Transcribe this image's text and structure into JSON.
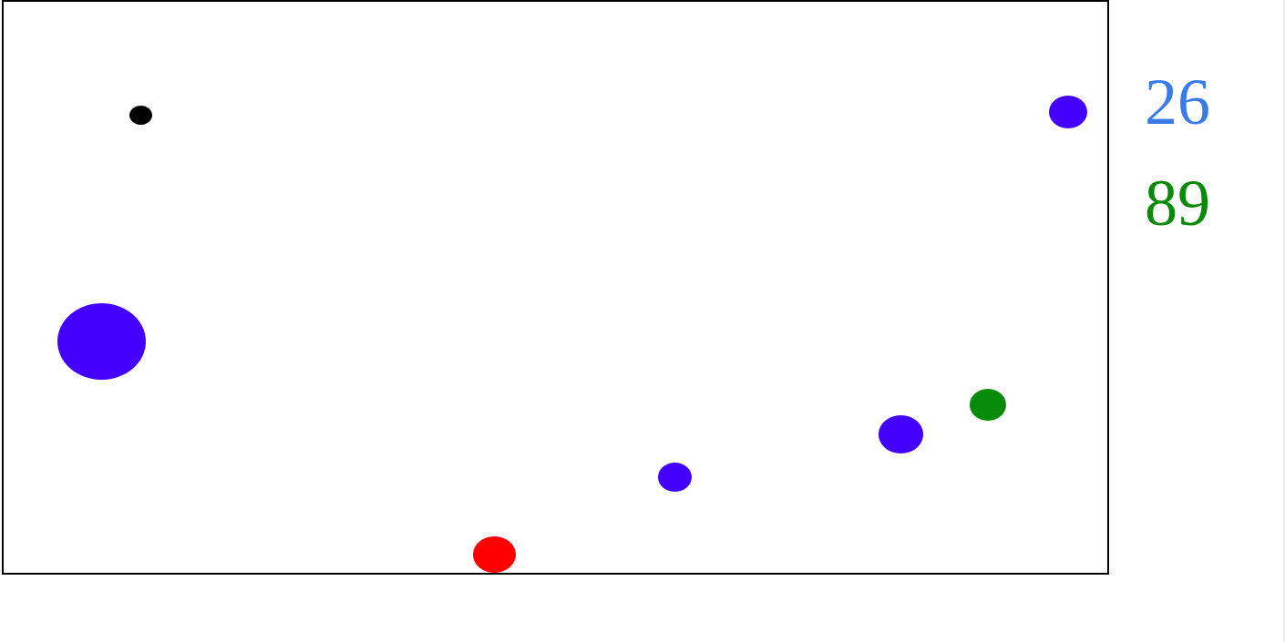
{
  "scores": {
    "blue": {
      "value": "26",
      "color": "#3a7bea"
    },
    "green": {
      "value": "89",
      "color": "#078a07"
    }
  },
  "balls": [
    {
      "role": "black-ball",
      "color": "#000000"
    },
    {
      "role": "blue-ball",
      "color": "#4400ff"
    },
    {
      "role": "blue-ball",
      "color": "#4400ff"
    },
    {
      "role": "blue-ball",
      "color": "#4400ff"
    },
    {
      "role": "blue-ball",
      "color": "#4400ff"
    },
    {
      "role": "green-ball",
      "color": "#078a07"
    },
    {
      "role": "red-ball",
      "color": "#ff0000"
    }
  ]
}
